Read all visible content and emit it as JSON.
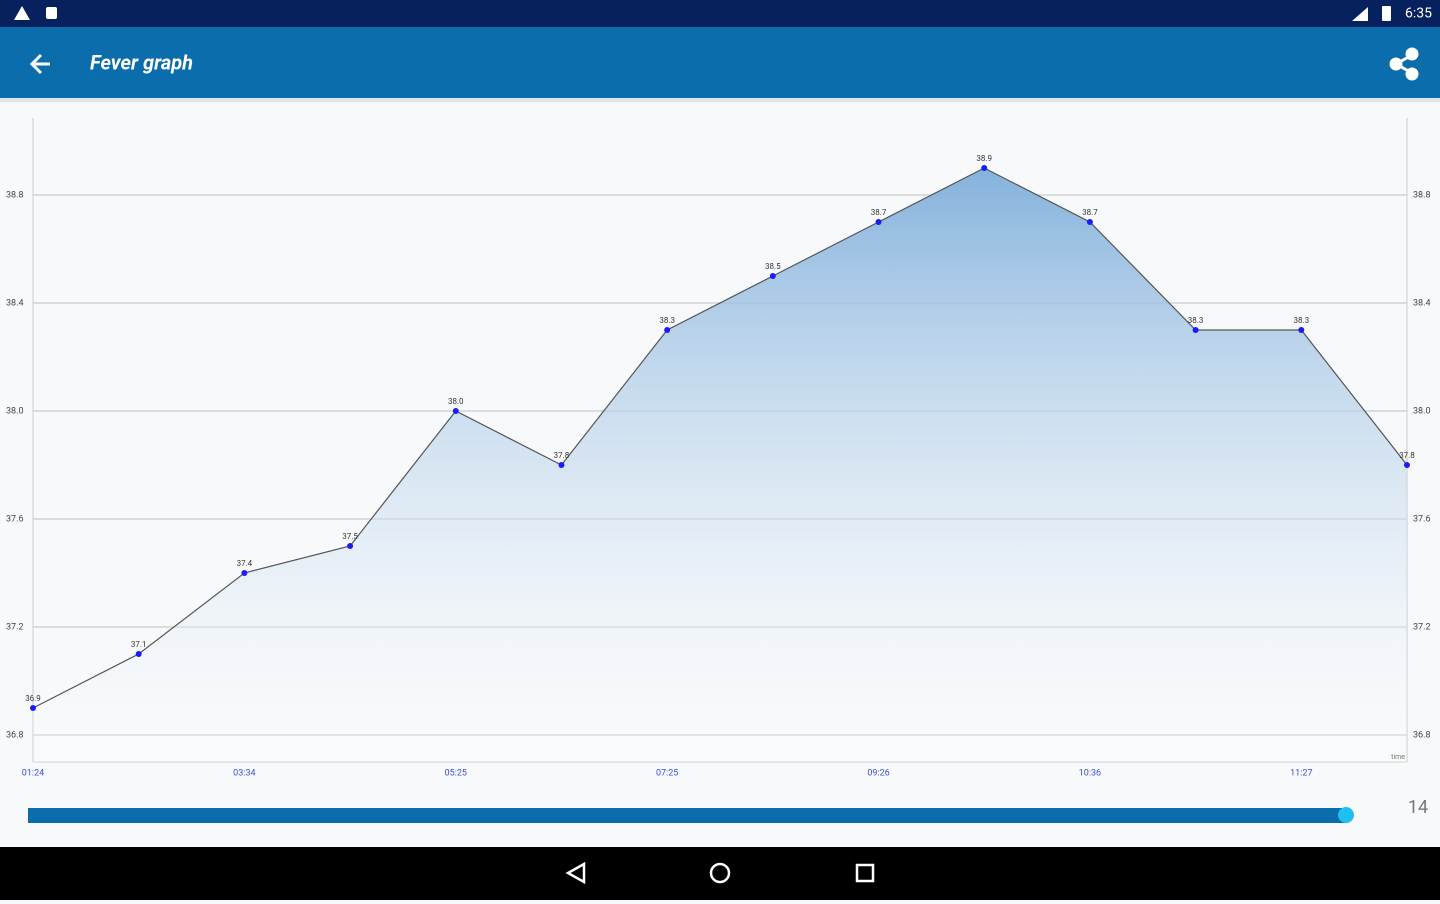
{
  "status_bar": {
    "time": "6:35"
  },
  "app_bar": {
    "title": "Fever graph"
  },
  "chart_data": {
    "type": "line",
    "categories": [
      "01:24",
      null,
      "03:34",
      null,
      "05:25",
      null,
      "07:25",
      null,
      "09:26",
      null,
      "10:36",
      null,
      "11:27",
      null
    ],
    "values": [
      36.9,
      37.1,
      37.4,
      37.5,
      38.0,
      37.8,
      38.3,
      38.5,
      38.7,
      38.9,
      38.7,
      38.3,
      38.3,
      37.8
    ],
    "value_labels": [
      "36.9",
      "37.1",
      "37.4",
      "37.5",
      "38.0",
      "37.8",
      "38.3",
      "38.5",
      "38.7",
      "38.9",
      "38.7",
      "38.3",
      "38.3",
      "37.8"
    ],
    "x_label": "time",
    "ylim": [
      36.7,
      39.1
    ],
    "yticks": [
      36.8,
      37.2,
      37.6,
      {
        "value": 38,
        "label": "38.0"
      },
      38.4,
      38.8
    ],
    "grid": true,
    "color": "#555555",
    "marker_color": "#1a1aff",
    "fill_color": "#7eaedb"
  },
  "slider": {
    "value": 14
  }
}
